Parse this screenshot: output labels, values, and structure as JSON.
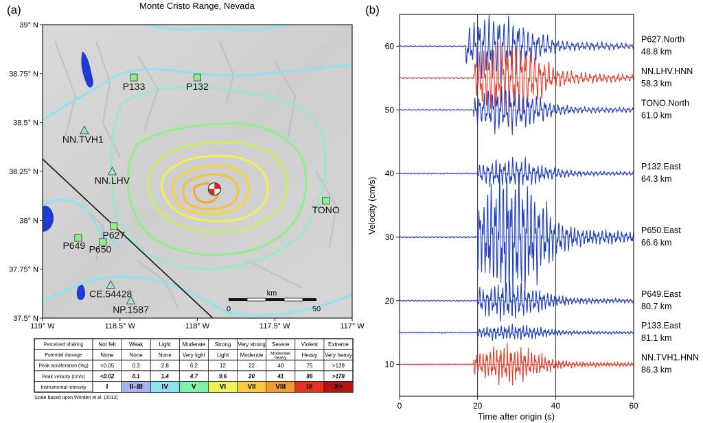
{
  "panels": {
    "a_label": "(a)",
    "b_label": "(b)"
  },
  "map": {
    "title": "Monte Cristo Range, Nevada",
    "x_ticks": [
      "119° W",
      "118.5° W",
      "118° W",
      "117.5° W",
      "117° W"
    ],
    "y_ticks": [
      "39° N",
      "38.75° N",
      "38.5° N",
      "38.25° N",
      "38° N",
      "37.75° N",
      "37.5° N"
    ],
    "scale_bar": {
      "unit": "km",
      "left": "0",
      "right": "50"
    },
    "stations": [
      {
        "name": "P133",
        "marker": "square",
        "lon": -118.41,
        "lat": 38.73
      },
      {
        "name": "P132",
        "marker": "square",
        "lon": -118.0,
        "lat": 38.73
      },
      {
        "name": "NN.TVH1",
        "marker": "triangle",
        "lon": -118.73,
        "lat": 38.46
      },
      {
        "name": "NN.LHV",
        "marker": "triangle",
        "lon": -118.55,
        "lat": 38.25
      },
      {
        "name": "TONO",
        "marker": "square",
        "lon": -117.17,
        "lat": 38.1
      },
      {
        "name": "P627",
        "marker": "square",
        "lon": -118.54,
        "lat": 37.97
      },
      {
        "name": "P649",
        "marker": "square",
        "lon": -118.77,
        "lat": 37.91
      },
      {
        "name": "P650",
        "marker": "square",
        "lon": -118.61,
        "lat": 37.89
      },
      {
        "name": "CE.54428",
        "marker": "triangle",
        "lon": -118.56,
        "lat": 37.67
      },
      {
        "name": "NP.1587",
        "marker": "triangle",
        "lon": -118.43,
        "lat": 37.59
      }
    ],
    "epicenter": {
      "lon": -117.89,
      "lat": 38.16
    }
  },
  "intensity_table": {
    "row_headers": [
      "Perceived shaking",
      "Potential damage",
      "Peak acceleration (%g)",
      "Peak velocity (cm/s)",
      "Instrumental intensity"
    ],
    "columns": [
      {
        "shaking": "Not felt",
        "damage": "None",
        "pga": "<0.05",
        "pgv": "<0.02",
        "mmi": "I",
        "color": "#ffffff"
      },
      {
        "shaking": "Weak",
        "damage": "None",
        "pga": "0.3",
        "pgv": "0.1",
        "mmi": "II–III",
        "color": "#a8b4f0"
      },
      {
        "shaking": "Light",
        "damage": "None",
        "pga": "2.8",
        "pgv": "1.4",
        "mmi": "IV",
        "color": "#8fe2f0"
      },
      {
        "shaking": "Moderate",
        "damage": "Very light",
        "pga": "6.2",
        "pgv": "4.7",
        "mmi": "V",
        "color": "#7ef2a6"
      },
      {
        "shaking": "Strong",
        "damage": "Light",
        "pga": "12",
        "pgv": "9.6",
        "mmi": "VI",
        "color": "#f4f25a"
      },
      {
        "shaking": "Very strong",
        "damage": "Moderate",
        "pga": "22",
        "pgv": "20",
        "mmi": "VII",
        "color": "#f8cc3a"
      },
      {
        "shaking": "Severe",
        "damage": "Moderate/ heavy",
        "pga": "40",
        "pgv": "41",
        "mmi": "VIII",
        "color": "#f59a2c"
      },
      {
        "shaking": "Violent",
        "damage": "Heavy",
        "pga": "75",
        "pgv": "86",
        "mmi": "IX",
        "color": "#e8331e"
      },
      {
        "shaking": "Extreme",
        "damage": "Very heavy",
        "pga": ">139",
        "pgv": ">178",
        "mmi": "X+",
        "color": "#b51313"
      }
    ],
    "citation": "Scale based upon Worden et al. (2012)"
  },
  "chart_data": {
    "type": "line",
    "xlabel": "Time after origin (s)",
    "ylabel": "Velocity (cm/s)",
    "xlim": [
      0,
      60
    ],
    "ylim": [
      5,
      65
    ],
    "x_ticks": [
      0,
      20,
      40,
      60
    ],
    "y_ticks": [
      10,
      20,
      30,
      40,
      50,
      60
    ],
    "vertical_lines": [
      20,
      40
    ],
    "traces": [
      {
        "name": "P627.North",
        "distance": "48.8 km",
        "offset": 60,
        "color": "#1f3fbf",
        "onset": 17,
        "amplitude": 4.5
      },
      {
        "name": "NN.LHV.HNN",
        "distance": "58.3 km",
        "offset": 55,
        "color": "#e2402e",
        "onset": 19,
        "amplitude": 5.5
      },
      {
        "name": "TONO.North",
        "distance": "61.0 km",
        "offset": 50,
        "color": "#1f3fbf",
        "onset": 19,
        "amplitude": 3
      },
      {
        "name": "P132.East",
        "distance": "64.3 km",
        "offset": 40,
        "color": "#1f3fbf",
        "onset": 20,
        "amplitude": 2
      },
      {
        "name": "P650.East",
        "distance": "66.6 km",
        "offset": 30,
        "color": "#1f3fbf",
        "onset": 20,
        "amplitude": 9
      },
      {
        "name": "P649.East",
        "distance": "80.7 km",
        "offset": 20,
        "color": "#1f3fbf",
        "onset": 20,
        "amplitude": 2.5
      },
      {
        "name": "P133.East",
        "distance": "81.1 km",
        "offset": 15,
        "color": "#1f3fbf",
        "onset": 20,
        "amplitude": 1
      },
      {
        "name": "NN.TVH1.HNN",
        "distance": "86.3 km",
        "offset": 10,
        "color": "#e2402e",
        "onset": 19,
        "amplitude": 2.5
      }
    ]
  }
}
